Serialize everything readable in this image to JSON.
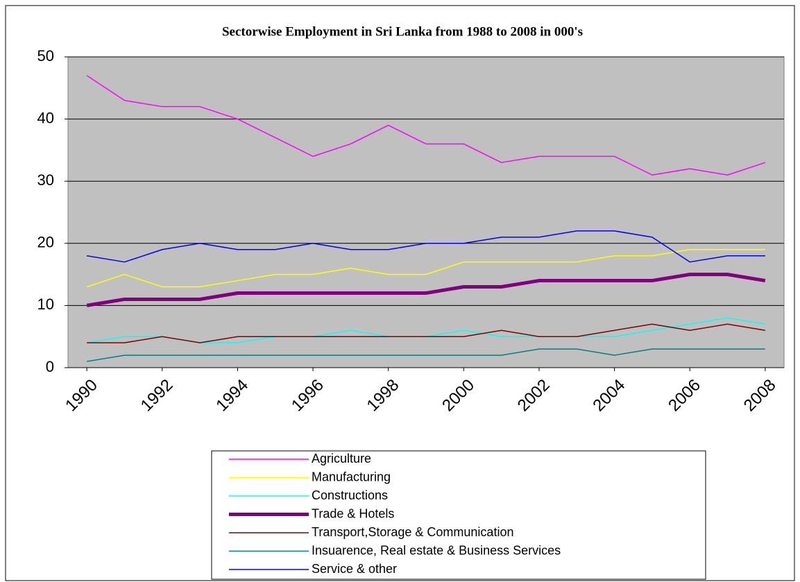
{
  "chart_data": {
    "type": "line",
    "title": "Sectorwise Employment in Sri Lanka  from 1988 to 2008 in 000's",
    "x": [
      1990,
      1991,
      1992,
      1993,
      1994,
      1995,
      1996,
      1997,
      1998,
      1999,
      2000,
      2001,
      2002,
      2003,
      2004,
      2005,
      2006,
      2007,
      2008
    ],
    "xlim": [
      1989.5,
      2008.5
    ],
    "xticks": [
      1990,
      1992,
      1994,
      1996,
      1998,
      2000,
      2002,
      2004,
      2006,
      2008
    ],
    "ylim": [
      0,
      50
    ],
    "yticks": [
      0,
      10,
      20,
      30,
      40,
      50
    ],
    "grid": true,
    "legend": "bottom",
    "series": [
      {
        "name": "Agriculture",
        "color": "#ff00ff",
        "line_width": 1.5,
        "values": [
          47,
          43,
          42,
          42,
          40,
          37,
          34,
          36,
          39,
          36,
          36,
          33,
          34,
          34,
          34,
          31,
          32,
          31,
          33
        ]
      },
      {
        "name": "Manufacturing",
        "color": "#ffff00",
        "line_width": 1.5,
        "values": [
          13,
          15,
          13,
          13,
          14,
          15,
          15,
          16,
          15,
          15,
          17,
          17,
          17,
          17,
          18,
          18,
          19,
          19,
          19
        ]
      },
      {
        "name": "Constructions",
        "color": "#00ffff",
        "line_width": 1.5,
        "values": [
          4,
          5,
          5,
          4,
          4,
          5,
          5,
          6,
          5,
          5,
          6,
          5,
          5,
          5,
          5,
          6,
          7,
          8,
          7
        ]
      },
      {
        "name": "Trade & Hotels",
        "color": "#800080",
        "line_width": 5,
        "values": [
          10,
          11,
          11,
          11,
          12,
          12,
          12,
          12,
          12,
          12,
          13,
          13,
          14,
          14,
          14,
          14,
          15,
          15,
          14
        ]
      },
      {
        "name": "Transport,Storage & Communication",
        "color": "#800000",
        "line_width": 1.5,
        "values": [
          4,
          4,
          5,
          4,
          5,
          5,
          5,
          5,
          5,
          5,
          5,
          6,
          5,
          5,
          6,
          7,
          6,
          7,
          6
        ]
      },
      {
        "name": "Insuarence, Real estate & Business Services",
        "color": "#008080",
        "line_width": 1.5,
        "values": [
          1,
          2,
          2,
          2,
          2,
          2,
          2,
          2,
          2,
          2,
          2,
          2,
          3,
          3,
          2,
          3,
          3,
          3,
          3
        ]
      },
      {
        "name": "Service & other",
        "color": "#0000ff",
        "line_width": 1.5,
        "values": [
          18,
          17,
          19,
          20,
          19,
          19,
          20,
          19,
          19,
          20,
          20,
          21,
          21,
          22,
          22,
          21,
          17,
          18,
          18
        ]
      }
    ]
  }
}
